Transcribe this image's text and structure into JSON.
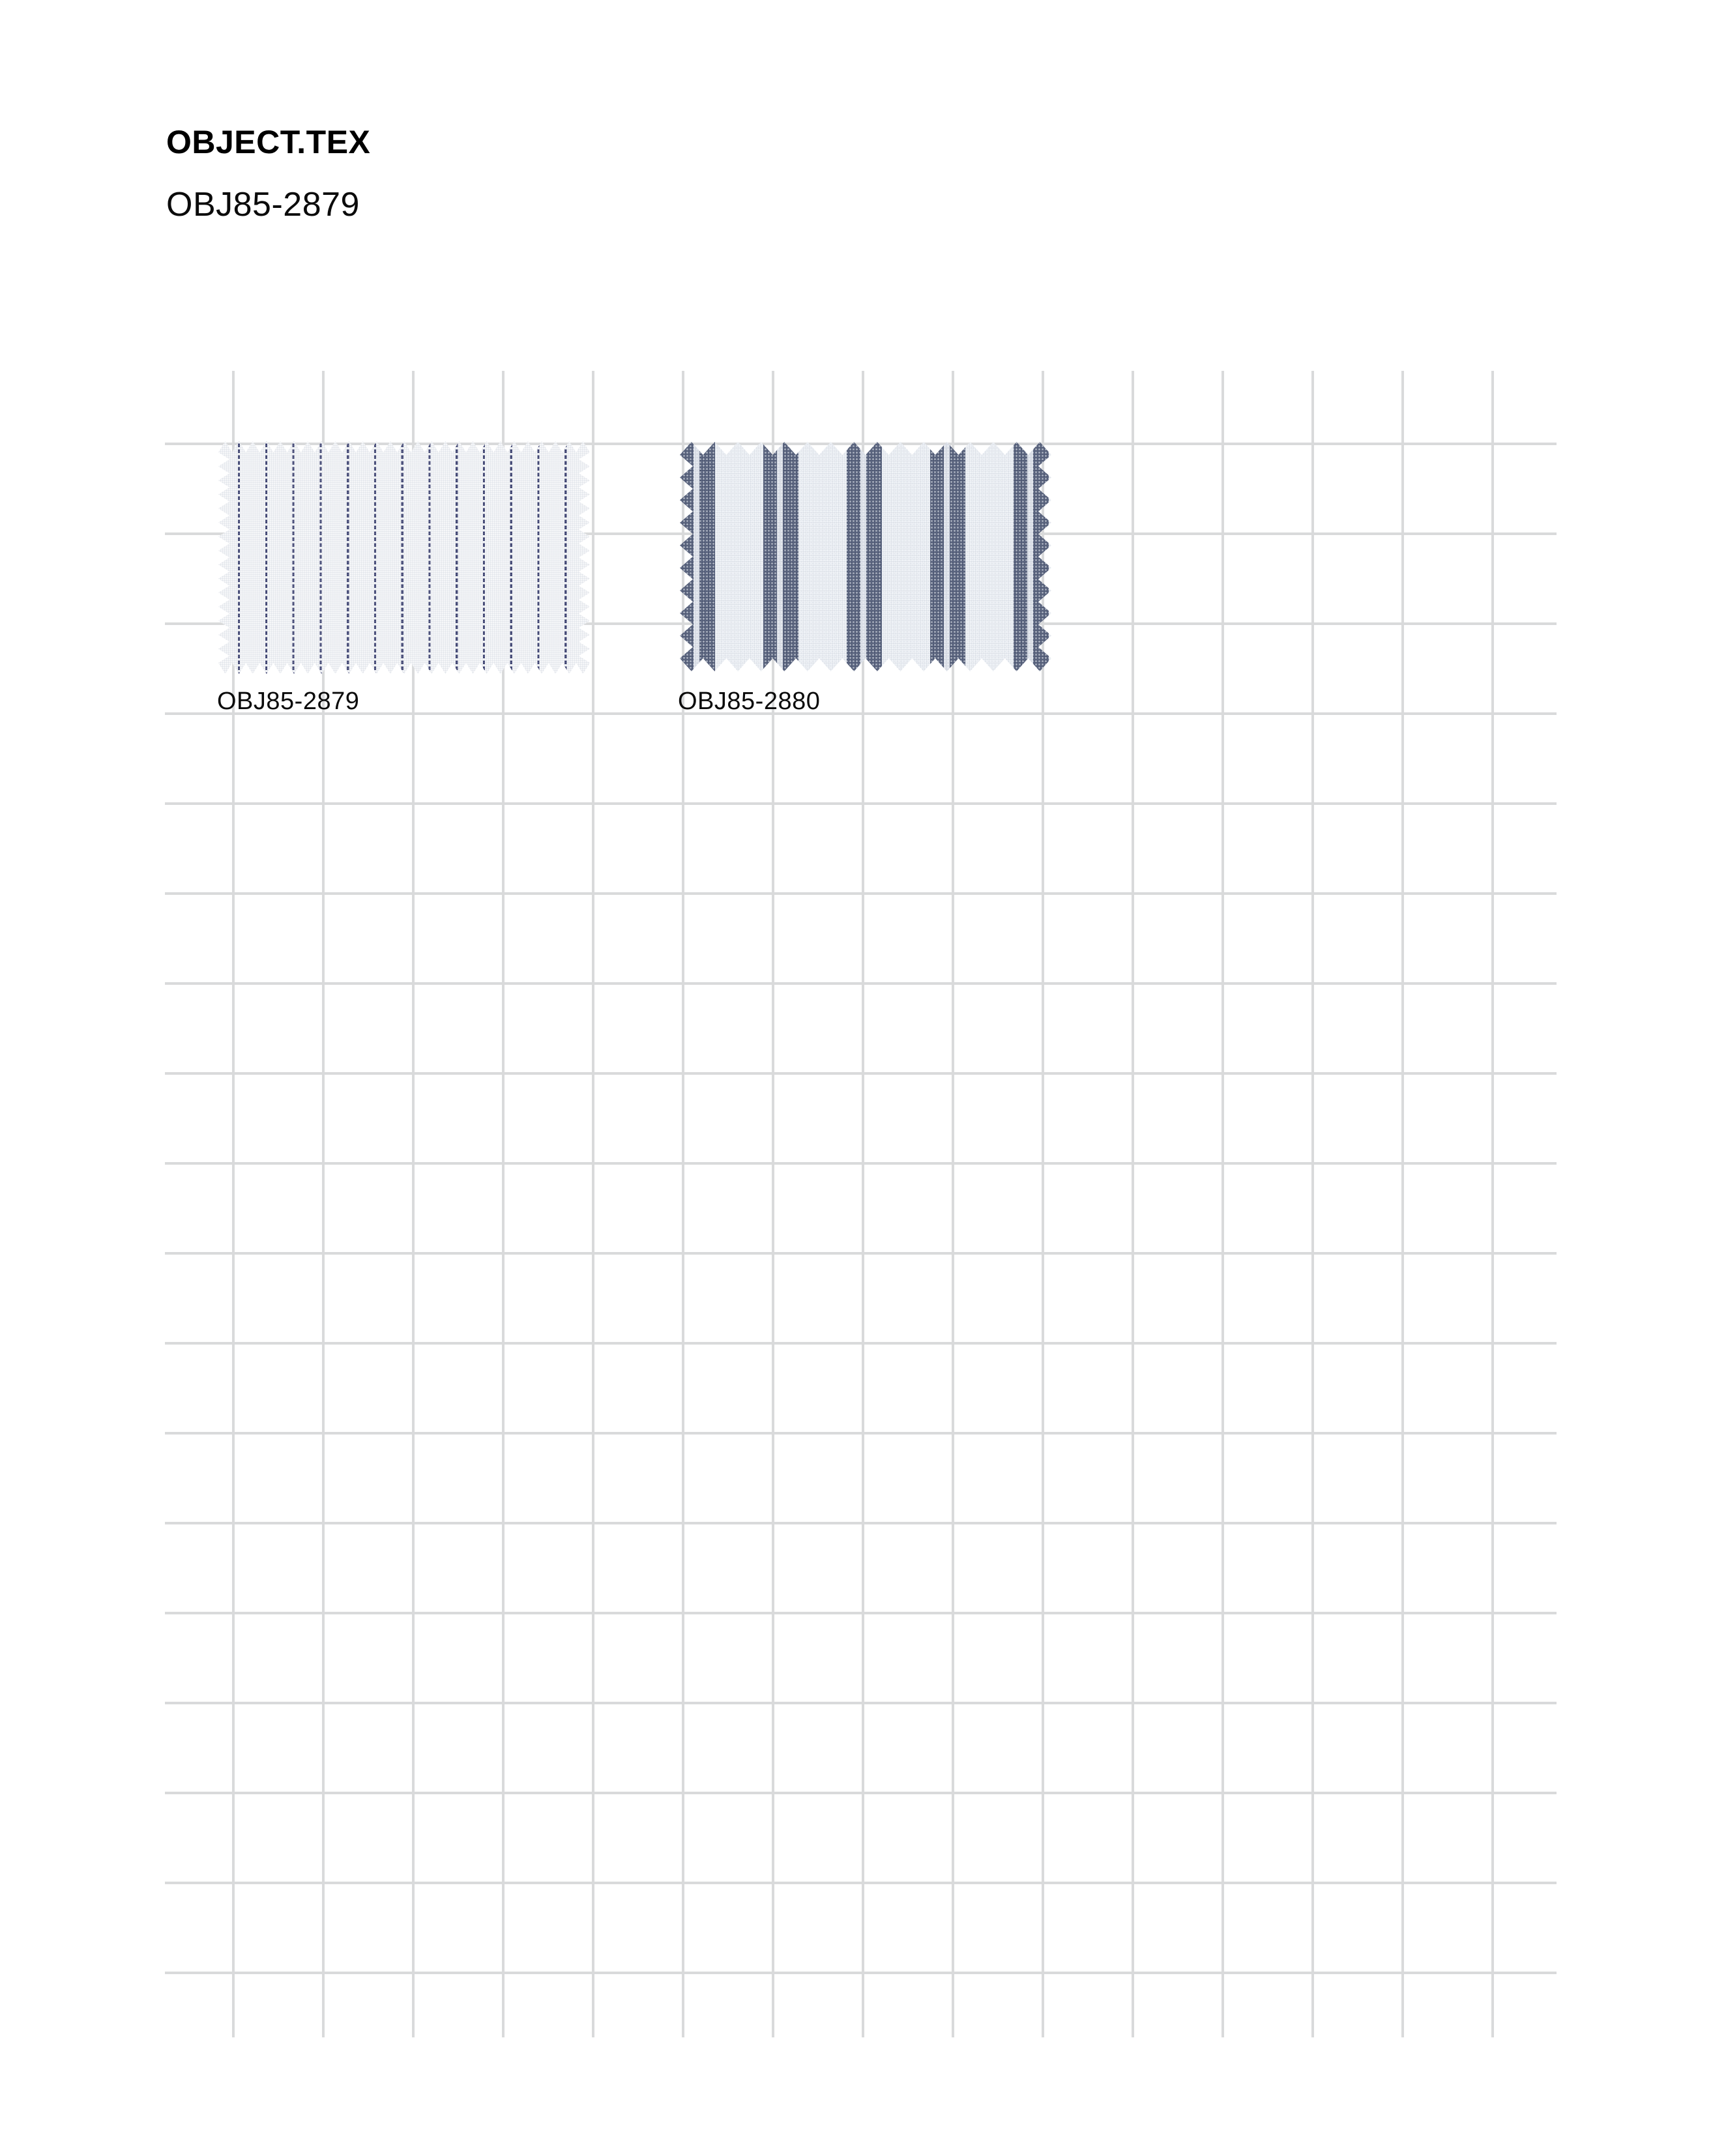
{
  "header": {
    "title": "OBJECT.TEX",
    "subtitle": "OBJ85-2879"
  },
  "grid": {
    "line_color": "#d9dadb"
  },
  "swatches": [
    {
      "label": "OBJ85-2879",
      "pattern_type": "dashed-navy-pinstripe",
      "colors": {
        "ground": "#f6f7f9",
        "stripe": "#3d4270"
      }
    },
    {
      "label": "OBJ85-2880",
      "pattern_type": "wide-navy-double-stripe",
      "colors": {
        "ground": "#eef1f5",
        "stripe": "#4e5873",
        "pinline": "#dfe3ea"
      }
    }
  ]
}
